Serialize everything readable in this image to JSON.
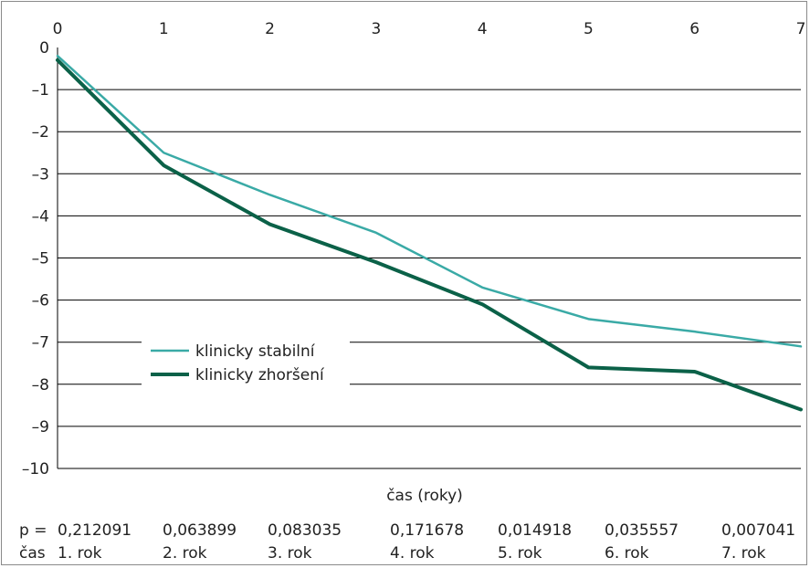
{
  "chart_data": {
    "type": "line",
    "x": [
      0,
      1,
      2,
      3,
      4,
      5,
      6,
      7
    ],
    "x_ticks": [
      "0",
      "1",
      "2",
      "3",
      "4",
      "5",
      "6",
      "7"
    ],
    "y_ticks": [
      "0",
      "–1",
      "–2",
      "–3",
      "–4",
      "–5",
      "–6",
      "–7",
      "–8",
      "–9",
      "–10"
    ],
    "xlim": [
      0,
      7
    ],
    "ylim": [
      -10,
      0
    ],
    "xlabel": "čas (roky)",
    "ylabel": "",
    "title": "",
    "grid": "horizontal",
    "legend_position": "center-left",
    "series": [
      {
        "name": "klinicky stabilní",
        "color": "#3aaaa6",
        "values": [
          -0.2,
          -2.5,
          -3.5,
          -4.4,
          -5.7,
          -6.45,
          -6.75,
          -7.1
        ]
      },
      {
        "name": "klinicky zhoršení",
        "color": "#0b6148",
        "values": [
          -0.3,
          -2.8,
          -4.2,
          -5.1,
          -6.1,
          -7.6,
          -7.7,
          -8.6
        ]
      }
    ]
  },
  "table": {
    "p_label": "p =",
    "p_values": [
      "0,212091",
      "0,063899",
      "0,083035",
      "0,171678",
      "0,014918",
      "0,035557",
      "0,007041"
    ],
    "time_label": "čas",
    "time_values": [
      "1. rok",
      "2. rok",
      "3. rok",
      "4. rok",
      "5. rok",
      "6. rok",
      "7. rok"
    ]
  }
}
